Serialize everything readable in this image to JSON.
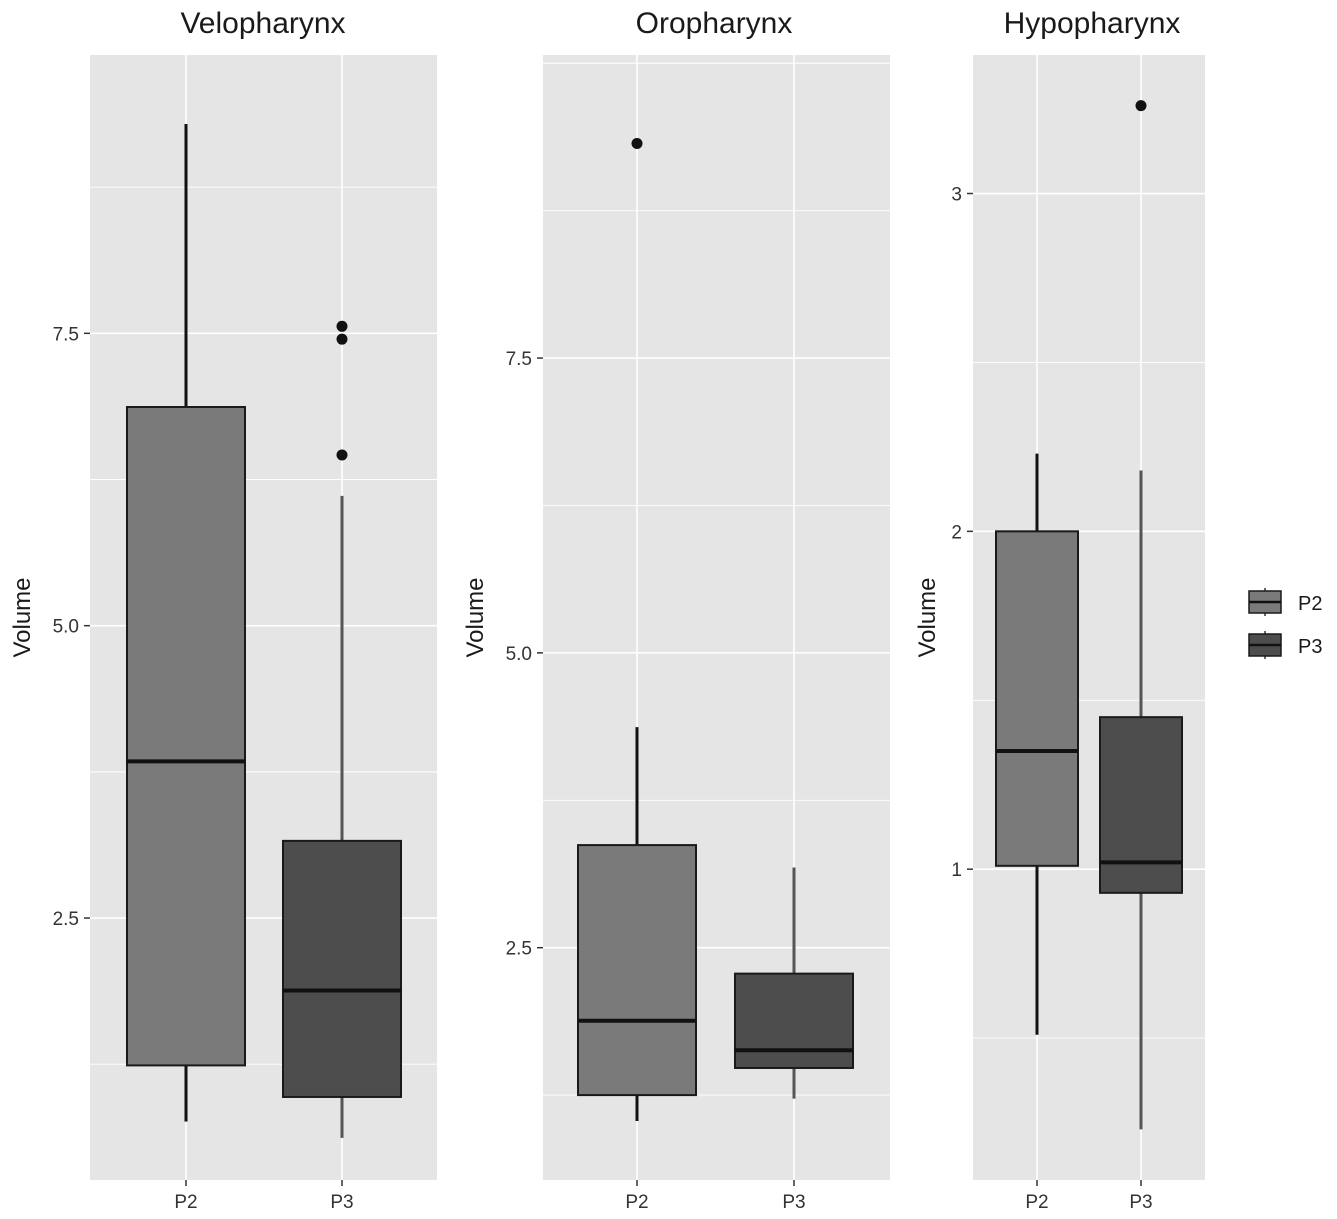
{
  "chart_data": [
    {
      "type": "box",
      "title": "Velopharynx",
      "ylabel": "Volume",
      "xlabel": "",
      "categories": [
        "P2",
        "P3"
      ],
      "ylim": [
        0.26,
        9.88
      ],
      "yticks": [
        "2.5",
        "5.0",
        "7.5"
      ],
      "series": [
        {
          "name": "P2",
          "q1": 1.24,
          "median": 3.84,
          "q3": 6.87,
          "whisker_low": 0.76,
          "whisker_high": 9.29,
          "outliers": []
        },
        {
          "name": "P3",
          "q1": 0.97,
          "median": 1.88,
          "q3": 3.16,
          "whisker_low": 0.62,
          "whisker_high": 6.11,
          "outliers": [
            6.46,
            7.45,
            7.56
          ]
        }
      ]
    },
    {
      "type": "box",
      "title": "Oropharynx",
      "ylabel": "Volume",
      "xlabel": "",
      "categories": [
        "P2",
        "P3"
      ],
      "ylim": [
        0.53,
        10.07
      ],
      "yticks": [
        "2.5",
        "5.0",
        "7.5"
      ],
      "series": [
        {
          "name": "P2",
          "q1": 1.25,
          "median": 1.88,
          "q3": 3.37,
          "whisker_low": 1.03,
          "whisker_high": 4.37,
          "outliers": [
            9.32
          ]
        },
        {
          "name": "P3",
          "q1": 1.48,
          "median": 1.63,
          "q3": 2.28,
          "whisker_low": 1.22,
          "whisker_high": 3.18,
          "outliers": []
        }
      ]
    },
    {
      "type": "box",
      "title": "Hypopharynx",
      "ylabel": "Volume",
      "xlabel": "",
      "categories": [
        "P2",
        "P3"
      ],
      "ylim": [
        0.08,
        3.41
      ],
      "yticks": [
        "1",
        "2",
        "3"
      ],
      "series": [
        {
          "name": "P2",
          "q1": 1.01,
          "median": 1.35,
          "q3": 2.0,
          "whisker_low": 0.51,
          "whisker_high": 2.23,
          "outliers": []
        },
        {
          "name": "P3",
          "q1": 0.93,
          "median": 1.02,
          "q3": 1.45,
          "whisker_low": 0.23,
          "whisker_high": 2.18,
          "outliers": [
            3.26
          ]
        }
      ]
    }
  ],
  "legend": {
    "position": "right",
    "items": [
      {
        "label": "P2",
        "color": "#7a7a7a"
      },
      {
        "label": "P3",
        "color": "#4d4d4d"
      }
    ]
  },
  "colors": {
    "panel_background": "#e5e5e5",
    "grid": "#ffffff",
    "box_outline": "#1a1a1a",
    "P2": "#7a7a7a",
    "P3": "#4d4d4d"
  }
}
